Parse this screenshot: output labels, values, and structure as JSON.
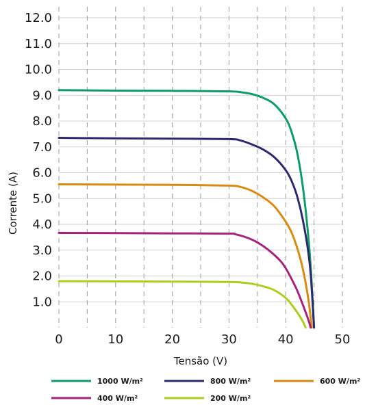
{
  "chart_data": {
    "type": "line",
    "xlabel": "Tensão (V)",
    "ylabel": "Corrente (A)",
    "xlim": [
      0,
      50
    ],
    "ylim": [
      0,
      12.5
    ],
    "x_ticks": [
      0,
      10,
      20,
      30,
      40,
      50
    ],
    "x_tick_labels": [
      "0",
      "10",
      "20",
      "30",
      "40",
      "50"
    ],
    "x_minor_gridlines": [
      5,
      15,
      25,
      35,
      45
    ],
    "y_ticks": [
      1,
      2,
      3,
      4,
      5,
      6,
      7,
      8,
      9,
      10,
      11,
      12
    ],
    "y_tick_labels": [
      "1.0",
      "2.0",
      "3.0",
      "4.0",
      "5.0",
      "6.0",
      "7.0",
      "8.0",
      "9.0",
      "10.0",
      "11.0",
      "12.0"
    ],
    "grid": true,
    "grid_style": "dashed",
    "legend_position": "bottom",
    "series": [
      {
        "name": "1000 W/m²",
        "color": "#0e9b6a",
        "x": [
          0,
          10,
          20,
          30,
          32,
          34,
          36,
          38,
          40,
          41,
          42,
          43,
          44,
          44.5,
          45
        ],
        "y": [
          9.2,
          9.18,
          9.17,
          9.15,
          9.12,
          9.05,
          8.9,
          8.65,
          8.1,
          7.6,
          6.8,
          5.5,
          3.5,
          2.0,
          0
        ]
      },
      {
        "name": "800 W/m²",
        "color": "#2c2a6e",
        "x": [
          0,
          10,
          20,
          30,
          32,
          34,
          36,
          38,
          40,
          41,
          42,
          43,
          44,
          44.5,
          45
        ],
        "y": [
          7.35,
          7.33,
          7.32,
          7.3,
          7.25,
          7.1,
          6.9,
          6.6,
          6.1,
          5.7,
          5.1,
          4.2,
          2.9,
          1.8,
          0
        ]
      },
      {
        "name": "600 W/m²",
        "color": "#d98a12",
        "x": [
          0,
          10,
          20,
          30,
          32,
          34,
          36,
          38,
          40,
          41,
          42,
          43,
          44,
          44.6
        ],
        "y": [
          5.55,
          5.54,
          5.53,
          5.5,
          5.45,
          5.3,
          5.05,
          4.7,
          4.1,
          3.7,
          3.1,
          2.3,
          1.1,
          0
        ]
      },
      {
        "name": "400 W/m²",
        "color": "#a3237e",
        "x": [
          0,
          10,
          20,
          30,
          31,
          33,
          35,
          37,
          39,
          40,
          41,
          42,
          43,
          44,
          44.4
        ],
        "y": [
          3.67,
          3.66,
          3.65,
          3.64,
          3.62,
          3.5,
          3.3,
          3.0,
          2.6,
          2.3,
          1.9,
          1.45,
          0.9,
          0.3,
          0
        ]
      },
      {
        "name": "200 W/m²",
        "color": "#aacd1e",
        "x": [
          0,
          10,
          20,
          30,
          32,
          34,
          36,
          38,
          40,
          41,
          42,
          43,
          43.5
        ],
        "y": [
          1.8,
          1.79,
          1.78,
          1.77,
          1.75,
          1.7,
          1.6,
          1.45,
          1.15,
          0.9,
          0.6,
          0.25,
          0
        ]
      }
    ]
  }
}
